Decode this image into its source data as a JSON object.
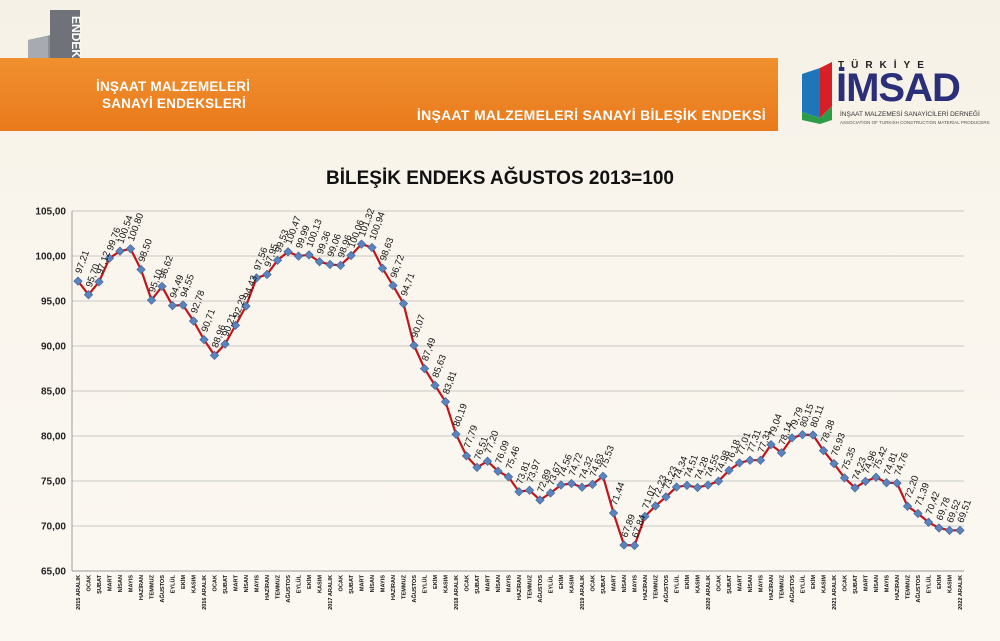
{
  "header": {
    "logo_text": "ENDEKS",
    "left_title_line1": "İNŞAAT MALZEMELERİ",
    "left_title_line2": "SANAYİ ENDEKSLERİ",
    "right_title": "İNŞAAT MALZEMELERİ SANAYİ BİLEŞİK ENDEKSİ"
  },
  "brand": {
    "top": "TÜRKİYE",
    "name": "İMSAD",
    "sub1": "İNŞAAT MALZEMESİ SANAYİCİLERİ DERNEĞİ",
    "sub2": "ASSOCIATION OF TURKISH CONSTRUCTION MATERIAL PRODUCERS",
    "colors": {
      "orange": "#e97a1c",
      "navy": "#2b2f7a",
      "red": "#d61f26",
      "green": "#2e9b48",
      "blue": "#1f75b9"
    }
  },
  "chart_data": {
    "type": "line",
    "title": "BİLEŞİK ENDEKS AĞUSTOS 2013=100",
    "ylim": [
      65,
      105
    ],
    "yticks": [
      "105,00",
      "100,00",
      "95,00",
      "90,00",
      "85,00",
      "80,00",
      "75,00",
      "70,00",
      "65,00"
    ],
    "grid": true,
    "line_color": "#c0161b",
    "marker_color": "#5b84bf",
    "categories": [
      "2015 ARALIK",
      "OCAK",
      "ŞUBAT",
      "MART",
      "NİSAN",
      "MAYIS",
      "HAZİRAN",
      "TEMMUZ",
      "AĞUSTOS",
      "EYLÜL",
      "EKİM",
      "KASIM",
      "2016 ARALIK",
      "OCAK",
      "ŞUBAT",
      "MART",
      "NİSAN",
      "MAYIS",
      "HAZİRAN",
      "TEMMUZ",
      "AĞUSTOS",
      "EYLÜL",
      "EKİM",
      "KASIM",
      "2017 ARALIK",
      "OCAK",
      "ŞUBAT",
      "MART",
      "NİSAN",
      "MAYIS",
      "HAZİRAN",
      "TEMMUZ",
      "AĞUSTOS",
      "EYLÜL",
      "EKİM",
      "KASIM",
      "2018 ARALIK",
      "OCAK",
      "ŞUBAT",
      "MART",
      "NİSAN",
      "MAYIS",
      "HAZİRAN",
      "TEMMUZ",
      "AĞUSTOS",
      "EYLÜL",
      "EKİM",
      "KASIM",
      "2019 ARALIK",
      "OCAK",
      "ŞUBAT",
      "MART",
      "NİSAN",
      "MAYIS",
      "HAZİRAN",
      "TEMMUZ",
      "AĞUSTOS",
      "EYLÜL",
      "EKİM",
      "KASIM",
      "2020 ARALIK",
      "OCAK",
      "ŞUBAT",
      "MART",
      "NİSAN",
      "MAYIS",
      "HAZİRAN",
      "TEMMUZ",
      "AĞUSTOS",
      "EYLÜL",
      "EKİM",
      "KASIM",
      "2021 ARALIK",
      "OCAK",
      "ŞUBAT",
      "MART",
      "NİSAN",
      "MAYIS",
      "HAZİRAN",
      "TEMMUZ",
      "AĞUSTOS",
      "EYLÜL",
      "EKİM",
      "KASIM",
      "2022 ARALIK"
    ],
    "values": [
      97.21,
      95.7,
      97.12,
      99.76,
      100.54,
      100.8,
      98.5,
      95.1,
      96.62,
      94.49,
      94.55,
      92.78,
      90.71,
      88.96,
      90.21,
      92.29,
      94.43,
      97.56,
      97.95,
      99.53,
      100.47,
      99.99,
      100.13,
      99.36,
      99.06,
      98.96,
      100.06,
      101.32,
      100.94,
      98.63,
      96.72,
      94.71,
      90.07,
      87.49,
      85.63,
      83.81,
      80.19,
      77.79,
      76.51,
      77.2,
      76.09,
      75.46,
      73.81,
      73.97,
      72.89,
      73.67,
      74.56,
      74.72,
      74.32,
      74.63,
      75.53,
      71.44,
      67.89,
      67.84,
      71.07,
      72.23,
      73.23,
      74.34,
      74.51,
      74.28,
      74.55,
      74.98,
      76.18,
      77.01,
      77.31,
      77.31,
      79.04,
      78.14,
      79.79,
      80.15,
      80.11,
      78.38,
      76.93,
      75.35,
      74.23,
      74.96,
      75.42,
      74.81,
      74.76,
      72.2,
      71.39,
      70.42,
      69.78,
      69.52,
      69.51
    ],
    "labels": [
      "97,21",
      "95,70",
      "97,12",
      "99,76",
      "100,54",
      "100,80",
      "98,50",
      "95,10",
      "96,62",
      "94,49",
      "94,55",
      "92,78",
      "90,71",
      "88,96",
      "90,21",
      "92,29",
      "94,43",
      "97,56",
      "97,95",
      "99,53",
      "100,47",
      "99,99",
      "100,13",
      "99,36",
      "99,06",
      "98,96",
      "100,06",
      "101,32",
      "100,94",
      "98,63",
      "96,72",
      "94,71",
      "90,07",
      "87,49",
      "85,63",
      "83,81",
      "80,19",
      "77,79",
      "76,51",
      "77,20",
      "76,09",
      "75,46",
      "73,81",
      "73,97",
      "72,89",
      "73,67",
      "74,56",
      "74,72",
      "74,32",
      "74,63",
      "75,53",
      "71,44",
      "67,89",
      "67,84",
      "71,07",
      "72,23",
      "73,23",
      "74,34",
      "74,51",
      "74,28",
      "74,55",
      "74,98",
      "76,18",
      "77,01",
      "77,31",
      "77,31",
      "79,04",
      "78,14",
      "79,79",
      "80,15",
      "80,11",
      "78,38",
      "76,93",
      "75,35",
      "74,23",
      "74,96",
      "75,42",
      "74,81",
      "74,76",
      "72,20",
      "71,39",
      "70,42",
      "69,78",
      "69,52",
      "69,51"
    ]
  }
}
